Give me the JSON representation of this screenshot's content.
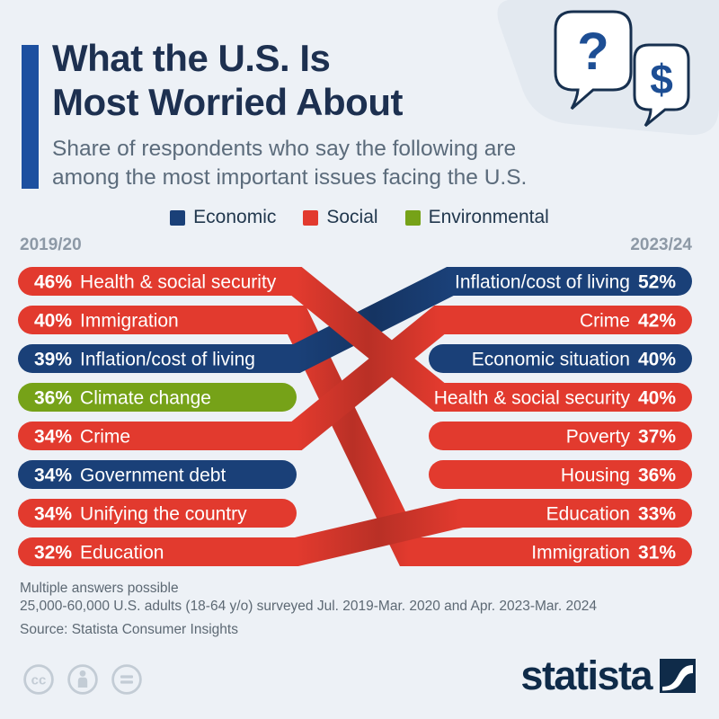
{
  "page": {
    "title_line1": "What the U.S. Is",
    "title_line2": "Most Worried About",
    "subtitle_line1": "Share of respondents who say the following are",
    "subtitle_line2": "among the most important issues facing the U.S."
  },
  "legend": [
    {
      "label": "Economic",
      "color": "#1a4078"
    },
    {
      "label": "Social",
      "color": "#e23a2e"
    },
    {
      "label": "Environmental",
      "color": "#76a218"
    }
  ],
  "columns": {
    "left": "2019/20",
    "right": "2023/24"
  },
  "chart_data": {
    "type": "slope-ranking",
    "unit": "%",
    "note": "ranked bars for two periods; ribbons connect issues present in both periods",
    "category_colors": {
      "Economic": "#1a4078",
      "Social": "#e23a2e",
      "Environmental": "#76a218"
    },
    "left_period": "2019/20",
    "right_period": "2023/24",
    "left": [
      {
        "label": "Health & social security",
        "value": 46,
        "category": "Social"
      },
      {
        "label": "Immigration",
        "value": 40,
        "category": "Social"
      },
      {
        "label": "Inflation/cost of living",
        "value": 39,
        "category": "Economic"
      },
      {
        "label": "Climate change",
        "value": 36,
        "category": "Environmental"
      },
      {
        "label": "Crime",
        "value": 34,
        "category": "Social"
      },
      {
        "label": "Government debt",
        "value": 34,
        "category": "Economic"
      },
      {
        "label": "Unifying the country",
        "value": 34,
        "category": "Social"
      },
      {
        "label": "Education",
        "value": 32,
        "category": "Social"
      }
    ],
    "right": [
      {
        "label": "Inflation/cost of living",
        "value": 52,
        "category": "Economic"
      },
      {
        "label": "Crime",
        "value": 42,
        "category": "Social"
      },
      {
        "label": "Economic situation",
        "value": 40,
        "category": "Economic"
      },
      {
        "label": "Health & social security",
        "value": 40,
        "category": "Social"
      },
      {
        "label": "Poverty",
        "value": 37,
        "category": "Social"
      },
      {
        "label": "Housing",
        "value": 36,
        "category": "Social"
      },
      {
        "label": "Education",
        "value": 33,
        "category": "Social"
      },
      {
        "label": "Immigration",
        "value": 31,
        "category": "Social"
      }
    ],
    "links_draw_order": [
      "Immigration",
      "Inflation/cost of living",
      "Crime",
      "Health & social security",
      "Education"
    ]
  },
  "footer": {
    "note_line1": "Multiple answers possible",
    "note_line2": "25,000-60,000 U.S. adults (18-64 y/o) surveyed Jul. 2019-Mar. 2020 and Apr. 2023-Mar. 2024",
    "source": "Source: Statista Consumer Insights"
  },
  "branding": {
    "logo_text": "statista"
  },
  "palette": {
    "background": "#edf1f6",
    "accent_bar": "#1d50a0",
    "title": "#1d3050",
    "subtitle": "#5b6b7b",
    "period_label": "#8d99a6",
    "bubble_glyph": "#1d4e94",
    "bubble_outline": "#17304f",
    "license_gray": "#c3ccd5"
  }
}
